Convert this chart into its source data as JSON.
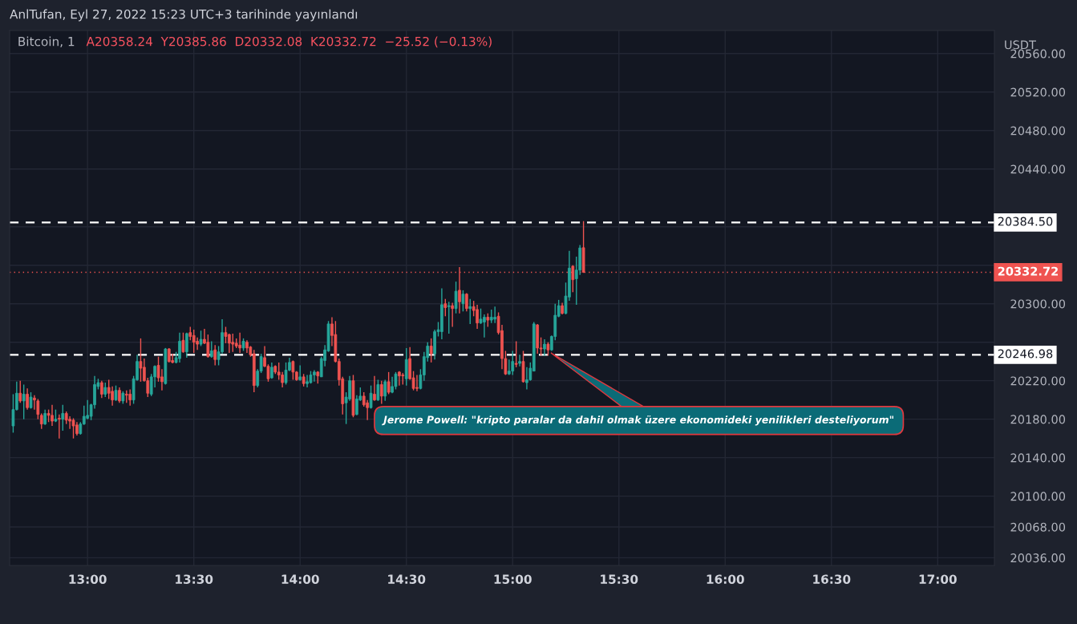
{
  "chart_data": {
    "type": "candlestick",
    "title": "AnlTufan, Eyl 27, 2022 15:23 UTC+3 tarihinde yayınlandı",
    "subtitle": "Bitcoin, 1",
    "ylabel": "USDT",
    "annotations": [
      "A20358.24  Y20385.86  D20332.08  K20332.72  −25.52 (−0.13%)",
      "Jerome Powell: \"kripto paralar da dahil olmak üzere ekonomideki yenilikleri desteliyorum\""
    ],
    "x": [
      "2022-09-27T12:39",
      "2022-09-27T12:40",
      "2022-09-27T12:41",
      "2022-09-27T12:42",
      "2022-09-27T12:43",
      "2022-09-27T12:44",
      "2022-09-27T12:45",
      "2022-09-27T12:46",
      "2022-09-27T12:47",
      "2022-09-27T12:48",
      "2022-09-27T12:49",
      "2022-09-27T12:50",
      "2022-09-27T12:51",
      "2022-09-27T12:52",
      "2022-09-27T12:53",
      "2022-09-27T12:54",
      "2022-09-27T12:55",
      "2022-09-27T12:56",
      "2022-09-27T12:57",
      "2022-09-27T12:58",
      "2022-09-27T12:59",
      "2022-09-27T13:00",
      "2022-09-27T13:01",
      "2022-09-27T13:02",
      "2022-09-27T13:03",
      "2022-09-27T13:04",
      "2022-09-27T13:05",
      "2022-09-27T13:06",
      "2022-09-27T13:07",
      "2022-09-27T13:08",
      "2022-09-27T13:09",
      "2022-09-27T13:10",
      "2022-09-27T13:11",
      "2022-09-27T13:12",
      "2022-09-27T13:13",
      "2022-09-27T13:14",
      "2022-09-27T13:15",
      "2022-09-27T13:16",
      "2022-09-27T13:17",
      "2022-09-27T13:18",
      "2022-09-27T13:19",
      "2022-09-27T13:20",
      "2022-09-27T13:21",
      "2022-09-27T13:22",
      "2022-09-27T13:23",
      "2022-09-27T13:24",
      "2022-09-27T13:25",
      "2022-09-27T13:26",
      "2022-09-27T13:27",
      "2022-09-27T13:28",
      "2022-09-27T13:29",
      "2022-09-27T13:30",
      "2022-09-27T13:31",
      "2022-09-27T13:32",
      "2022-09-27T13:33",
      "2022-09-27T13:34",
      "2022-09-27T13:35",
      "2022-09-27T13:36",
      "2022-09-27T13:37",
      "2022-09-27T13:38",
      "2022-09-27T13:39",
      "2022-09-27T13:40",
      "2022-09-27T13:41",
      "2022-09-27T13:42",
      "2022-09-27T13:43",
      "2022-09-27T13:44",
      "2022-09-27T13:45",
      "2022-09-27T13:46",
      "2022-09-27T13:47",
      "2022-09-27T13:48",
      "2022-09-27T13:49",
      "2022-09-27T13:50",
      "2022-09-27T13:51",
      "2022-09-27T13:52",
      "2022-09-27T13:53",
      "2022-09-27T13:54",
      "2022-09-27T13:55",
      "2022-09-27T13:56",
      "2022-09-27T13:57",
      "2022-09-27T13:58",
      "2022-09-27T13:59",
      "2022-09-27T14:00",
      "2022-09-27T14:01",
      "2022-09-27T14:02",
      "2022-09-27T14:03",
      "2022-09-27T14:04",
      "2022-09-27T14:05",
      "2022-09-27T14:06",
      "2022-09-27T14:07",
      "2022-09-27T14:08",
      "2022-09-27T14:09",
      "2022-09-27T14:10",
      "2022-09-27T14:11",
      "2022-09-27T14:12",
      "2022-09-27T14:13",
      "2022-09-27T14:14",
      "2022-09-27T14:15",
      "2022-09-27T14:16",
      "2022-09-27T14:17",
      "2022-09-27T14:18",
      "2022-09-27T14:19",
      "2022-09-27T14:20",
      "2022-09-27T14:21",
      "2022-09-27T14:22",
      "2022-09-27T14:23",
      "2022-09-27T14:24",
      "2022-09-27T14:25",
      "2022-09-27T14:26",
      "2022-09-27T14:27",
      "2022-09-27T14:28",
      "2022-09-27T14:29",
      "2022-09-27T14:30",
      "2022-09-27T14:31",
      "2022-09-27T14:32",
      "2022-09-27T14:33",
      "2022-09-27T14:34",
      "2022-09-27T14:35",
      "2022-09-27T14:36",
      "2022-09-27T14:37",
      "2022-09-27T14:38",
      "2022-09-27T14:39",
      "2022-09-27T14:40",
      "2022-09-27T14:41",
      "2022-09-27T14:42",
      "2022-09-27T14:43",
      "2022-09-27T14:44",
      "2022-09-27T14:45",
      "2022-09-27T14:46",
      "2022-09-27T14:47",
      "2022-09-27T14:48",
      "2022-09-27T14:49",
      "2022-09-27T14:50",
      "2022-09-27T14:51",
      "2022-09-27T14:52",
      "2022-09-27T14:53",
      "2022-09-27T14:54",
      "2022-09-27T14:55",
      "2022-09-27T14:56",
      "2022-09-27T14:57",
      "2022-09-27T14:58",
      "2022-09-27T14:59",
      "2022-09-27T15:00",
      "2022-09-27T15:01",
      "2022-09-27T15:02",
      "2022-09-27T15:03",
      "2022-09-27T15:04",
      "2022-09-27T15:05",
      "2022-09-27T15:06",
      "2022-09-27T15:07",
      "2022-09-27T15:08",
      "2022-09-27T15:09",
      "2022-09-27T15:10",
      "2022-09-27T15:11",
      "2022-09-27T15:12",
      "2022-09-27T15:13",
      "2022-09-27T15:14",
      "2022-09-27T15:15",
      "2022-09-27T15:16",
      "2022-09-27T15:17",
      "2022-09-27T15:18",
      "2022-09-27T15:19",
      "2022-09-27T15:20"
    ],
    "ohlc": [
      [
        20173,
        20206,
        20166,
        20190
      ],
      [
        20190,
        20219,
        20189,
        20207
      ],
      [
        20207,
        20220,
        20197,
        20199
      ],
      [
        20199,
        20216,
        20180,
        20206
      ],
      [
        20206,
        20212,
        20190,
        20192
      ],
      [
        20192,
        20208,
        20191,
        20203
      ],
      [
        20202,
        20205,
        20190,
        20200
      ],
      [
        20199,
        20201,
        20180,
        20185
      ],
      [
        20184,
        20186,
        20170,
        20175
      ],
      [
        20175,
        20190,
        20174,
        20186
      ],
      [
        20186,
        20190,
        20177,
        20184
      ],
      [
        20184,
        20195,
        20173,
        20178
      ],
      [
        20178,
        20190,
        20177,
        20180
      ],
      [
        20181,
        20185,
        20160,
        20180
      ],
      [
        20180,
        20195,
        20168,
        20186
      ],
      [
        20186,
        20188,
        20175,
        20179
      ],
      [
        20180,
        20183,
        20170,
        20178
      ],
      [
        20179,
        20181,
        20160,
        20173
      ],
      [
        20174,
        20177,
        20163,
        20165
      ],
      [
        20165,
        20177,
        20164,
        20175
      ],
      [
        20175,
        20194,
        20174,
        20183
      ],
      [
        20181,
        20200,
        20180,
        20184
      ],
      [
        20183,
        20196,
        20179,
        20195
      ],
      [
        20195,
        20225,
        20191,
        20216
      ],
      [
        20214,
        20222,
        20211,
        20218
      ],
      [
        20218,
        20220,
        20202,
        20206
      ],
      [
        20206,
        20218,
        20203,
        20213
      ],
      [
        20213,
        20221,
        20201,
        20207
      ],
      [
        20209,
        20214,
        20194,
        20200
      ],
      [
        20200,
        20215,
        20199,
        20210
      ],
      [
        20210,
        20213,
        20197,
        20199
      ],
      [
        20199,
        20209,
        20196,
        20207
      ],
      [
        20206,
        20210,
        20197,
        20205
      ],
      [
        20206,
        20211,
        20194,
        20200
      ],
      [
        20200,
        20225,
        20196,
        20222
      ],
      [
        20221,
        20247,
        20220,
        20240
      ],
      [
        20240,
        20264,
        20219,
        20233
      ],
      [
        20234,
        20243,
        20219,
        20220
      ],
      [
        20220,
        20223,
        20203,
        20207
      ],
      [
        20206,
        20227,
        20204,
        20224
      ],
      [
        20224,
        20236,
        20213,
        20235
      ],
      [
        20236,
        20245,
        20219,
        20223
      ],
      [
        20224,
        20232,
        20210,
        20219
      ],
      [
        20217,
        20254,
        20216,
        20253
      ],
      [
        20253,
        20254,
        20239,
        20240
      ],
      [
        20241,
        20248,
        20238,
        20239
      ],
      [
        20239,
        20250,
        20238,
        20244
      ],
      [
        20243,
        20270,
        20239,
        20261
      ],
      [
        20262,
        20270,
        20249,
        20250
      ],
      [
        20250,
        20270,
        20244,
        20269
      ],
      [
        20270,
        20276,
        20262,
        20266
      ],
      [
        20267,
        20273,
        20249,
        20260
      ],
      [
        20261,
        20265,
        20252,
        20258
      ],
      [
        20258,
        20272,
        20256,
        20263
      ],
      [
        20263,
        20274,
        20258,
        20259
      ],
      [
        20260,
        20268,
        20244,
        20245
      ],
      [
        20245,
        20261,
        20244,
        20251
      ],
      [
        20252,
        20257,
        20236,
        20242
      ],
      [
        20242,
        20256,
        20236,
        20250
      ],
      [
        20250,
        20284,
        20248,
        20270
      ],
      [
        20270,
        20276,
        20259,
        20266
      ],
      [
        20268,
        20269,
        20249,
        20259
      ],
      [
        20260,
        20269,
        20250,
        20258
      ],
      [
        20259,
        20264,
        20254,
        20256
      ],
      [
        20257,
        20270,
        20249,
        20254
      ],
      [
        20254,
        20264,
        20251,
        20261
      ],
      [
        20260,
        20262,
        20249,
        20254
      ],
      [
        20255,
        20256,
        20245,
        20247
      ],
      [
        20248,
        20252,
        20208,
        20215
      ],
      [
        20215,
        20232,
        20213,
        20230
      ],
      [
        20230,
        20248,
        20228,
        20245
      ],
      [
        20244,
        20256,
        20234,
        20235
      ],
      [
        20235,
        20237,
        20219,
        20222
      ],
      [
        20223,
        20239,
        20222,
        20234
      ],
      [
        20235,
        20236,
        20227,
        20229
      ],
      [
        20229,
        20239,
        20221,
        20226
      ],
      [
        20226,
        20229,
        20213,
        20218
      ],
      [
        20218,
        20239,
        20216,
        20231
      ],
      [
        20231,
        20244,
        20230,
        20239
      ],
      [
        20240,
        20241,
        20221,
        20229
      ],
      [
        20229,
        20230,
        20220,
        20221
      ],
      [
        20221,
        20236,
        20220,
        20224
      ],
      [
        20224,
        20227,
        20214,
        20217
      ],
      [
        20217,
        20226,
        20213,
        20219
      ],
      [
        20218,
        20230,
        20217,
        20226
      ],
      [
        20226,
        20231,
        20219,
        20229
      ],
      [
        20229,
        20230,
        20217,
        20225
      ],
      [
        20224,
        20245,
        20224,
        20243
      ],
      [
        20241,
        20257,
        20235,
        20252
      ],
      [
        20251,
        20282,
        20250,
        20279
      ],
      [
        20279,
        20286,
        20256,
        20267
      ],
      [
        20268,
        20282,
        20239,
        20240
      ],
      [
        20240,
        20243,
        20215,
        20221
      ],
      [
        20222,
        20224,
        20185,
        20196
      ],
      [
        20197,
        20208,
        20175,
        20203
      ],
      [
        20201,
        20225,
        20199,
        20220
      ],
      [
        20220,
        20226,
        20182,
        20184
      ],
      [
        20185,
        20205,
        20184,
        20201
      ],
      [
        20200,
        20213,
        20199,
        20204
      ],
      [
        20204,
        20208,
        20193,
        20195
      ],
      [
        20197,
        20200,
        20179,
        20192
      ],
      [
        20192,
        20215,
        20191,
        20207
      ],
      [
        20206,
        20225,
        20199,
        20200
      ],
      [
        20200,
        20221,
        20199,
        20216
      ],
      [
        20216,
        20220,
        20196,
        20204
      ],
      [
        20204,
        20221,
        20199,
        20219
      ],
      [
        20219,
        20229,
        20206,
        20208
      ],
      [
        20208,
        20224,
        20207,
        20214
      ],
      [
        20214,
        20229,
        20211,
        20227
      ],
      [
        20229,
        20230,
        20215,
        20225
      ],
      [
        20226,
        20228,
        20216,
        20225
      ],
      [
        20222,
        20254,
        20215,
        20242
      ],
      [
        20243,
        20255,
        20221,
        20222
      ],
      [
        20223,
        20230,
        20210,
        20212
      ],
      [
        20213,
        20226,
        20209,
        20212
      ],
      [
        20212,
        20232,
        20211,
        20226
      ],
      [
        20226,
        20250,
        20220,
        20245
      ],
      [
        20244,
        20260,
        20240,
        20256
      ],
      [
        20256,
        20264,
        20239,
        20248
      ],
      [
        20248,
        20273,
        20242,
        20271
      ],
      [
        20271,
        20281,
        20266,
        20273
      ],
      [
        20271,
        20316,
        20263,
        20299
      ],
      [
        20300,
        20305,
        20287,
        20296
      ],
      [
        20297,
        20302,
        20269,
        20298
      ],
      [
        20298,
        20301,
        20276,
        20295
      ],
      [
        20295,
        20323,
        20290,
        20313
      ],
      [
        20314,
        20338,
        20290,
        20302
      ],
      [
        20300,
        20314,
        20292,
        20310
      ],
      [
        20310,
        20311,
        20292,
        20295
      ],
      [
        20295,
        20305,
        20279,
        20297
      ],
      [
        20297,
        20303,
        20287,
        20293
      ],
      [
        20294,
        20299,
        20274,
        20280
      ],
      [
        20280,
        20295,
        20279,
        20284
      ],
      [
        20281,
        20289,
        20265,
        20286
      ],
      [
        20286,
        20290,
        20276,
        20283
      ],
      [
        20283,
        20294,
        20280,
        20286
      ],
      [
        20284,
        20297,
        20280,
        20286
      ],
      [
        20287,
        20291,
        20268,
        20270
      ],
      [
        20272,
        20278,
        20232,
        20243
      ],
      [
        20243,
        20251,
        20226,
        20227
      ],
      [
        20227,
        20242,
        20226,
        20230
      ],
      [
        20230,
        20251,
        20226,
        20240
      ],
      [
        20238,
        20261,
        20234,
        20237
      ],
      [
        20238,
        20247,
        20235,
        20240
      ],
      [
        20240,
        20251,
        20218,
        20219
      ],
      [
        20218,
        20234,
        20211,
        20221
      ],
      [
        20221,
        20239,
        20220,
        20233
      ],
      [
        20230,
        20281,
        20230,
        20279
      ],
      [
        20278,
        20279,
        20248,
        20254
      ],
      [
        20254,
        20265,
        20246,
        20253
      ],
      [
        20253,
        20263,
        20246,
        20258
      ],
      [
        20258,
        20260,
        20246,
        20252
      ],
      [
        20252,
        20267,
        20251,
        20266
      ],
      [
        20266,
        20300,
        20262,
        20288
      ],
      [
        20287,
        20304,
        20286,
        20298
      ],
      [
        20298,
        20301,
        20289,
        20290
      ],
      [
        20290,
        20322,
        20289,
        20308
      ],
      [
        20307,
        20355,
        20303,
        20337
      ],
      [
        20339,
        20340,
        20312,
        20325
      ],
      [
        20326,
        20349,
        20299,
        20335
      ],
      [
        20335,
        20361,
        20330,
        20358
      ],
      [
        20358.24,
        20385.86,
        20332.08,
        20332.72
      ]
    ],
    "xlim": [
      "2022-09-27T12:38",
      "2022-09-27T17:16"
    ],
    "xticks": [
      {
        "value": "2022-09-27T13:00",
        "label": "13:00"
      },
      {
        "value": "2022-09-27T13:30",
        "label": "13:30"
      },
      {
        "value": "2022-09-27T14:00",
        "label": "14:00"
      },
      {
        "value": "2022-09-27T14:30",
        "label": "14:30"
      },
      {
        "value": "2022-09-27T15:00",
        "label": "15:00"
      },
      {
        "value": "2022-09-27T15:30",
        "label": "15:30"
      },
      {
        "value": "2022-09-27T16:00",
        "label": "16:00"
      },
      {
        "value": "2022-09-27T16:30",
        "label": "16:30"
      },
      {
        "value": "2022-09-27T17:00",
        "label": "17:00"
      }
    ],
    "ylim": [
      20028,
      20584
    ],
    "yticks": [
      {
        "value": 20560,
        "label": "20560.00"
      },
      {
        "value": 20520,
        "label": "20520.00"
      },
      {
        "value": 20480,
        "label": "20480.00"
      },
      {
        "value": 20440,
        "label": "20440.00"
      },
      {
        "value": 20380,
        "label": null
      },
      {
        "value": 20340,
        "label": null
      },
      {
        "value": 20300,
        "label": "20300.00"
      },
      {
        "value": 20260,
        "label": null
      },
      {
        "value": 20220,
        "label": "20220.00"
      },
      {
        "value": 20180,
        "label": "20180.00"
      },
      {
        "value": 20140,
        "label": "20140.00"
      },
      {
        "value": 20100,
        "label": "20100.00"
      },
      {
        "value": 20068,
        "label": "20068.00"
      },
      {
        "value": 20036,
        "label": "20036.00"
      }
    ],
    "ref_lines": [
      {
        "axis": "y",
        "value": 20384.5,
        "label": "20384.50",
        "color": "#ffffff",
        "line_style": "dashed"
      },
      {
        "axis": "y",
        "value": 20332.72,
        "label": "20332.72",
        "color": "#ef5350",
        "line_style": "dotted"
      },
      {
        "axis": "y",
        "value": 20246.98,
        "label": "20246.98",
        "color": "#ffffff",
        "line_style": "dashed"
      }
    ],
    "grid": true
  }
}
